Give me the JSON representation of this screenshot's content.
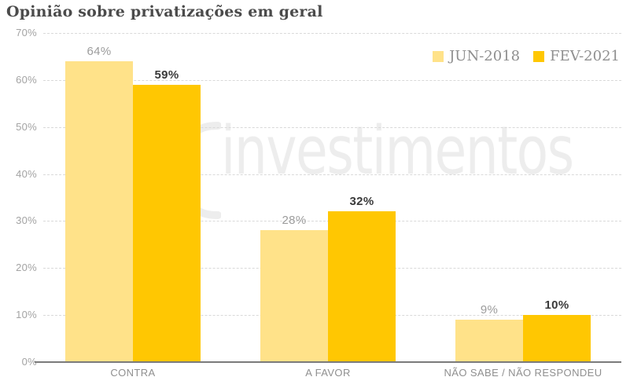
{
  "title": "Opinião sobre privatizações em geral",
  "watermark": {
    "text": "investimentos",
    "logo": "left-bracket-logo"
  },
  "legend": {
    "position": "top-right",
    "items": [
      {
        "label": "JUN-2018",
        "color": "#ffe289"
      },
      {
        "label": "FEV-2021",
        "color": "#ffc702"
      }
    ]
  },
  "chart_data": {
    "type": "bar",
    "title": "Opinião sobre privatizações em geral",
    "categories": [
      "CONTRA",
      "A FAVOR",
      "NÃO SABE / NÃO RESPONDEU"
    ],
    "series": [
      {
        "name": "JUN-2018",
        "color": "#ffe289",
        "values": [
          64,
          28,
          9
        ],
        "value_labels": [
          "64%",
          "28%",
          "9%"
        ],
        "label_color": "#9c9c9c",
        "label_weight": "normal"
      },
      {
        "name": "FEV-2021",
        "color": "#ffc702",
        "values": [
          59,
          32,
          10
        ],
        "value_labels": [
          "59%",
          "32%",
          "10%"
        ],
        "label_color": "#3a3a3a",
        "label_weight": "600"
      }
    ],
    "xlabel": "",
    "ylabel": "",
    "ylim": [
      0,
      70
    ],
    "y_ticks": [
      {
        "value": 0,
        "label": "0%"
      },
      {
        "value": 10,
        "label": "10%"
      },
      {
        "value": 20,
        "label": "20%"
      },
      {
        "value": 30,
        "label": "30%"
      },
      {
        "value": 40,
        "label": "40%"
      },
      {
        "value": 50,
        "label": "50%"
      },
      {
        "value": 60,
        "label": "60%"
      },
      {
        "value": 70,
        "label": "70%"
      }
    ],
    "grid": "horizontal-dashed",
    "legend_position": "top-right"
  },
  "colors": {
    "background": "#ffffff",
    "title": "#4b4b4b",
    "axis_line": "#7b7b7b",
    "gridline": "#d9d9d9",
    "tick_label": "#a3a3a3",
    "category_label": "#8f8f8f",
    "watermark": "#ededed"
  }
}
